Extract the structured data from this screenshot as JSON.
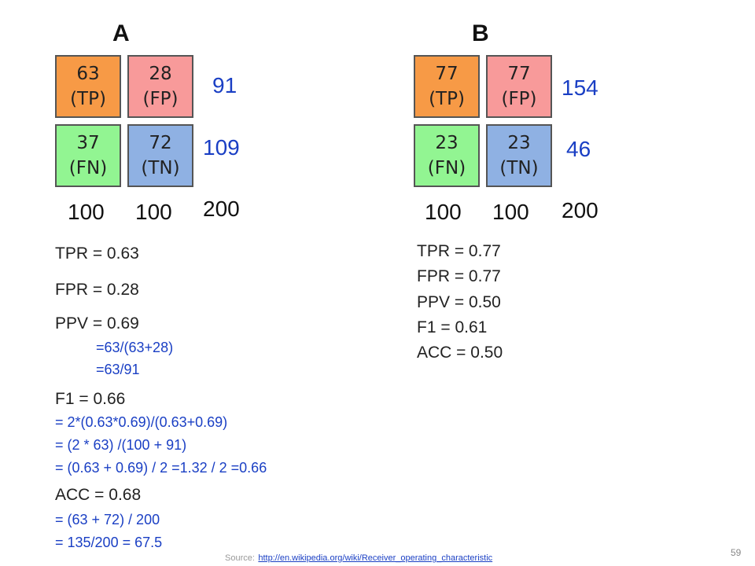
{
  "panelA": {
    "label": "A",
    "tp": {
      "value": "63",
      "tag": "(TP)"
    },
    "fp": {
      "value": "28",
      "tag": "(FP)"
    },
    "fn": {
      "value": "37",
      "tag": "(FN)"
    },
    "tn": {
      "value": "72",
      "tag": "(TN)"
    },
    "row_sums": [
      "91",
      "109"
    ],
    "col_sums": [
      "100",
      "100"
    ],
    "total": "200",
    "metrics": {
      "tpr": "TPR = 0.63",
      "fpr": "FPR = 0.28",
      "ppv": "PPV = 0.69",
      "ppv_calc": [
        "=63/(63+28)",
        "=63/91"
      ],
      "f1": "F1 = 0.66",
      "f1_calc": [
        "= 2*(0.63*0.69)/(0.63+0.69)",
        "= (2 * 63) /(100 + 91)",
        "= (0.63 + 0.69) / 2 =1.32 / 2 =0.66"
      ],
      "acc": "ACC = 0.68",
      "acc_calc": [
        "= (63 + 72) / 200",
        "= 135/200 = 67.5"
      ]
    }
  },
  "panelB": {
    "label": "B",
    "tp": {
      "value": "77",
      "tag": "(TP)"
    },
    "fp": {
      "value": "77",
      "tag": "(FP)"
    },
    "fn": {
      "value": "23",
      "tag": "(FN)"
    },
    "tn": {
      "value": "23",
      "tag": "(TN)"
    },
    "row_sums": [
      "154",
      "46"
    ],
    "col_sums": [
      "100",
      "100"
    ],
    "total": "200",
    "metrics": [
      "TPR = 0.77",
      "FPR = 0.77",
      "PPV = 0.50",
      "F1 = 0.61",
      "ACC = 0.50"
    ]
  },
  "footer": {
    "source_label": "Source:",
    "source_url": "http://en.wikipedia.org/wiki/Receiver_operating_characteristic",
    "page_number": "59"
  },
  "colors": {
    "tp": "#f79a46",
    "fp": "#f89a9a",
    "fn": "#92f592",
    "tn": "#8fb1e3",
    "calc_text": "#1a3fc4"
  }
}
